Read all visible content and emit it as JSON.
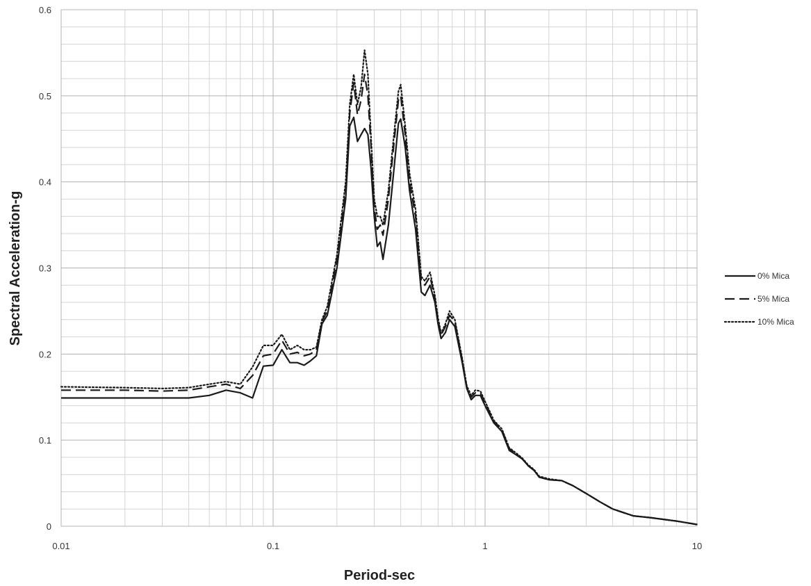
{
  "chart_data": {
    "type": "line",
    "title": "",
    "xlabel": "Period-sec",
    "ylabel": "Spectral Acceleration-g",
    "x_scale": "log",
    "xlim": [
      0.01,
      10
    ],
    "ylim": [
      0,
      0.6
    ],
    "x_ticks": [
      {
        "value": 0.01,
        "label": "0.01"
      },
      {
        "value": 0.1,
        "label": "0.1"
      },
      {
        "value": 1,
        "label": "1"
      },
      {
        "value": 10,
        "label": "10"
      }
    ],
    "y_ticks": [
      {
        "value": 0,
        "label": "0"
      },
      {
        "value": 0.1,
        "label": "0.1"
      },
      {
        "value": 0.2,
        "label": "0.2"
      },
      {
        "value": 0.3,
        "label": "0.3"
      },
      {
        "value": 0.4,
        "label": "0.4"
      },
      {
        "value": 0.5,
        "label": "0.5"
      },
      {
        "value": 0.6,
        "label": "0.6"
      }
    ],
    "grid": true,
    "legend_position": "right",
    "series": [
      {
        "name": "0% Mica",
        "style": "solid",
        "color": "#1a1a1a",
        "points": [
          [
            0.01,
            0.149
          ],
          [
            0.02,
            0.149
          ],
          [
            0.03,
            0.149
          ],
          [
            0.04,
            0.149
          ],
          [
            0.05,
            0.152
          ],
          [
            0.06,
            0.158
          ],
          [
            0.07,
            0.155
          ],
          [
            0.08,
            0.149
          ],
          [
            0.09,
            0.186
          ],
          [
            0.1,
            0.187
          ],
          [
            0.11,
            0.205
          ],
          [
            0.12,
            0.19
          ],
          [
            0.13,
            0.19
          ],
          [
            0.14,
            0.187
          ],
          [
            0.15,
            0.192
          ],
          [
            0.16,
            0.198
          ],
          [
            0.17,
            0.235
          ],
          [
            0.18,
            0.245
          ],
          [
            0.2,
            0.3
          ],
          [
            0.22,
            0.38
          ],
          [
            0.23,
            0.465
          ],
          [
            0.24,
            0.475
          ],
          [
            0.25,
            0.447
          ],
          [
            0.26,
            0.455
          ],
          [
            0.27,
            0.462
          ],
          [
            0.28,
            0.455
          ],
          [
            0.29,
            0.415
          ],
          [
            0.3,
            0.36
          ],
          [
            0.31,
            0.325
          ],
          [
            0.32,
            0.33
          ],
          [
            0.33,
            0.31
          ],
          [
            0.35,
            0.35
          ],
          [
            0.37,
            0.41
          ],
          [
            0.39,
            0.468
          ],
          [
            0.4,
            0.473
          ],
          [
            0.42,
            0.44
          ],
          [
            0.44,
            0.39
          ],
          [
            0.47,
            0.345
          ],
          [
            0.5,
            0.272
          ],
          [
            0.52,
            0.268
          ],
          [
            0.55,
            0.28
          ],
          [
            0.58,
            0.26
          ],
          [
            0.6,
            0.235
          ],
          [
            0.62,
            0.218
          ],
          [
            0.65,
            0.225
          ],
          [
            0.68,
            0.24
          ],
          [
            0.72,
            0.232
          ],
          [
            0.78,
            0.19
          ],
          [
            0.82,
            0.16
          ],
          [
            0.86,
            0.147
          ],
          [
            0.9,
            0.152
          ],
          [
            0.95,
            0.152
          ],
          [
            1.0,
            0.14
          ],
          [
            1.1,
            0.12
          ],
          [
            1.2,
            0.11
          ],
          [
            1.3,
            0.088
          ],
          [
            1.4,
            0.083
          ],
          [
            1.5,
            0.078
          ],
          [
            1.6,
            0.07
          ],
          [
            1.7,
            0.065
          ],
          [
            1.8,
            0.057
          ],
          [
            2.0,
            0.054
          ],
          [
            2.3,
            0.053
          ],
          [
            2.6,
            0.047
          ],
          [
            3.0,
            0.038
          ],
          [
            3.5,
            0.028
          ],
          [
            4.0,
            0.02
          ],
          [
            5.0,
            0.012
          ],
          [
            6.0,
            0.01
          ],
          [
            8.0,
            0.006
          ],
          [
            10.0,
            0.002
          ]
        ]
      },
      {
        "name": "5% Mica",
        "style": "dashed",
        "color": "#1a1a1a",
        "points": [
          [
            0.01,
            0.158
          ],
          [
            0.02,
            0.158
          ],
          [
            0.03,
            0.157
          ],
          [
            0.04,
            0.158
          ],
          [
            0.05,
            0.162
          ],
          [
            0.06,
            0.165
          ],
          [
            0.07,
            0.16
          ],
          [
            0.08,
            0.175
          ],
          [
            0.09,
            0.198
          ],
          [
            0.1,
            0.2
          ],
          [
            0.11,
            0.216
          ],
          [
            0.12,
            0.2
          ],
          [
            0.13,
            0.202
          ],
          [
            0.14,
            0.198
          ],
          [
            0.15,
            0.2
          ],
          [
            0.16,
            0.205
          ],
          [
            0.17,
            0.238
          ],
          [
            0.18,
            0.25
          ],
          [
            0.2,
            0.31
          ],
          [
            0.22,
            0.39
          ],
          [
            0.23,
            0.48
          ],
          [
            0.24,
            0.515
          ],
          [
            0.25,
            0.478
          ],
          [
            0.26,
            0.495
          ],
          [
            0.27,
            0.525
          ],
          [
            0.28,
            0.5
          ],
          [
            0.29,
            0.44
          ],
          [
            0.3,
            0.37
          ],
          [
            0.31,
            0.345
          ],
          [
            0.32,
            0.35
          ],
          [
            0.33,
            0.338
          ],
          [
            0.35,
            0.38
          ],
          [
            0.37,
            0.44
          ],
          [
            0.39,
            0.495
          ],
          [
            0.4,
            0.5
          ],
          [
            0.42,
            0.455
          ],
          [
            0.44,
            0.4
          ],
          [
            0.47,
            0.36
          ],
          [
            0.5,
            0.285
          ],
          [
            0.52,
            0.28
          ],
          [
            0.55,
            0.29
          ],
          [
            0.58,
            0.265
          ],
          [
            0.6,
            0.24
          ],
          [
            0.62,
            0.222
          ],
          [
            0.65,
            0.232
          ],
          [
            0.68,
            0.245
          ],
          [
            0.72,
            0.238
          ],
          [
            0.78,
            0.193
          ],
          [
            0.82,
            0.162
          ],
          [
            0.86,
            0.15
          ],
          [
            0.9,
            0.155
          ],
          [
            0.95,
            0.155
          ],
          [
            1.0,
            0.143
          ],
          [
            1.1,
            0.122
          ],
          [
            1.2,
            0.112
          ],
          [
            1.3,
            0.09
          ],
          [
            1.4,
            0.084
          ],
          [
            1.5,
            0.078
          ],
          [
            1.6,
            0.07
          ],
          [
            1.7,
            0.065
          ],
          [
            1.8,
            0.057
          ],
          [
            2.0,
            0.054
          ],
          [
            2.3,
            0.053
          ],
          [
            2.6,
            0.047
          ],
          [
            3.0,
            0.038
          ],
          [
            3.5,
            0.028
          ],
          [
            4.0,
            0.02
          ],
          [
            5.0,
            0.012
          ],
          [
            6.0,
            0.01
          ],
          [
            8.0,
            0.006
          ],
          [
            10.0,
            0.002
          ]
        ]
      },
      {
        "name": "10% Mica",
        "style": "dotted",
        "color": "#1a1a1a",
        "points": [
          [
            0.01,
            0.162
          ],
          [
            0.02,
            0.161
          ],
          [
            0.03,
            0.16
          ],
          [
            0.04,
            0.161
          ],
          [
            0.05,
            0.165
          ],
          [
            0.06,
            0.168
          ],
          [
            0.07,
            0.165
          ],
          [
            0.08,
            0.185
          ],
          [
            0.09,
            0.21
          ],
          [
            0.1,
            0.21
          ],
          [
            0.11,
            0.223
          ],
          [
            0.12,
            0.205
          ],
          [
            0.13,
            0.21
          ],
          [
            0.14,
            0.205
          ],
          [
            0.15,
            0.205
          ],
          [
            0.16,
            0.208
          ],
          [
            0.17,
            0.24
          ],
          [
            0.18,
            0.255
          ],
          [
            0.2,
            0.315
          ],
          [
            0.22,
            0.4
          ],
          [
            0.23,
            0.49
          ],
          [
            0.24,
            0.525
          ],
          [
            0.25,
            0.49
          ],
          [
            0.26,
            0.51
          ],
          [
            0.27,
            0.553
          ],
          [
            0.28,
            0.525
          ],
          [
            0.29,
            0.45
          ],
          [
            0.3,
            0.38
          ],
          [
            0.31,
            0.36
          ],
          [
            0.32,
            0.36
          ],
          [
            0.33,
            0.35
          ],
          [
            0.35,
            0.39
          ],
          [
            0.37,
            0.45
          ],
          [
            0.39,
            0.505
          ],
          [
            0.4,
            0.513
          ],
          [
            0.42,
            0.465
          ],
          [
            0.44,
            0.41
          ],
          [
            0.47,
            0.368
          ],
          [
            0.5,
            0.29
          ],
          [
            0.52,
            0.285
          ],
          [
            0.55,
            0.295
          ],
          [
            0.58,
            0.268
          ],
          [
            0.6,
            0.242
          ],
          [
            0.62,
            0.224
          ],
          [
            0.65,
            0.235
          ],
          [
            0.68,
            0.25
          ],
          [
            0.72,
            0.24
          ],
          [
            0.78,
            0.195
          ],
          [
            0.82,
            0.163
          ],
          [
            0.86,
            0.152
          ],
          [
            0.9,
            0.158
          ],
          [
            0.95,
            0.157
          ],
          [
            1.0,
            0.145
          ],
          [
            1.1,
            0.123
          ],
          [
            1.2,
            0.113
          ],
          [
            1.3,
            0.091
          ],
          [
            1.4,
            0.085
          ],
          [
            1.5,
            0.079
          ],
          [
            1.6,
            0.071
          ],
          [
            1.7,
            0.066
          ],
          [
            1.8,
            0.058
          ],
          [
            2.0,
            0.055
          ],
          [
            2.3,
            0.053
          ],
          [
            2.6,
            0.047
          ],
          [
            3.0,
            0.038
          ],
          [
            3.5,
            0.028
          ],
          [
            4.0,
            0.02
          ],
          [
            5.0,
            0.012
          ],
          [
            6.0,
            0.01
          ],
          [
            8.0,
            0.006
          ],
          [
            10.0,
            0.002
          ]
        ]
      }
    ]
  }
}
